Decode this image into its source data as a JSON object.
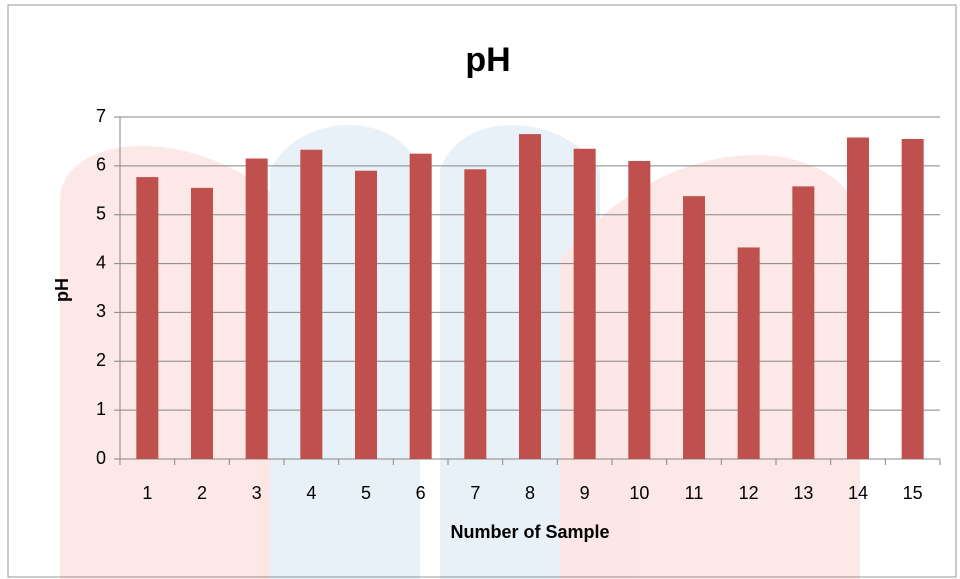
{
  "chart_data": {
    "type": "bar",
    "title": "pH",
    "x_label": "Number of Sample",
    "y_label": "pH",
    "categories": [
      "1",
      "2",
      "3",
      "4",
      "5",
      "6",
      "7",
      "8",
      "9",
      "10",
      "11",
      "12",
      "13",
      "14",
      "15"
    ],
    "values": [
      5.77,
      5.55,
      6.15,
      6.33,
      5.9,
      6.25,
      5.93,
      6.65,
      6.35,
      6.1,
      5.38,
      4.33,
      5.58,
      6.58,
      6.55
    ],
    "color": "#c0504d",
    "ylim": [
      0,
      7
    ],
    "yticks": [
      0,
      1,
      2,
      3,
      4,
      5,
      6,
      7
    ],
    "grid": true
  }
}
